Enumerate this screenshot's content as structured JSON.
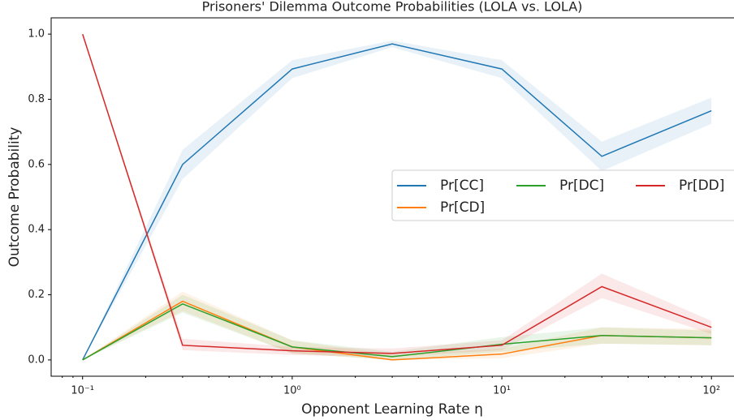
{
  "chart_data": {
    "type": "line",
    "title": "Prisoners' Dilemma Outcome Probabilities (LOLA vs. LOLA)",
    "xlabel": "Opponent Learning Rate η",
    "ylabel": "Outcome Probability",
    "xscale": "log",
    "x": [
      0.1,
      0.3,
      1,
      3,
      10,
      30,
      100
    ],
    "series": [
      {
        "name": "Pr[CC]",
        "color": "#1f77b4",
        "values": [
          0,
          0.6,
          0.893,
          0.97,
          0.893,
          0.625,
          0.765
        ],
        "lower": [
          0,
          0.555,
          0.865,
          0.96,
          0.865,
          0.58,
          0.725
        ],
        "upper": [
          0,
          0.645,
          0.92,
          0.98,
          0.92,
          0.67,
          0.805
        ]
      },
      {
        "name": "Pr[CD]",
        "color": "#ff7f0e",
        "values": [
          0,
          0.18,
          0.04,
          0.0,
          0.018,
          0.075,
          0.068
        ],
        "lower": [
          0,
          0.15,
          0.02,
          0,
          0.005,
          0.05,
          0.045
        ],
        "upper": [
          0,
          0.21,
          0.06,
          0.015,
          0.035,
          0.1,
          0.095
        ]
      },
      {
        "name": "Pr[DC]",
        "color": "#2ca02c",
        "values": [
          0,
          0.172,
          0.04,
          0.01,
          0.048,
          0.075,
          0.068
        ],
        "lower": [
          0,
          0.145,
          0.02,
          0,
          0.025,
          0.05,
          0.045
        ],
        "upper": [
          0,
          0.2,
          0.06,
          0.025,
          0.07,
          0.1,
          0.09
        ]
      },
      {
        "name": "Pr[DD]",
        "color": "#d62728",
        "values": [
          1.0,
          0.045,
          0.028,
          0.02,
          0.045,
          0.225,
          0.1
        ],
        "lower": [
          1,
          0.03,
          0.015,
          0.01,
          0.03,
          0.19,
          0.08
        ],
        "upper": [
          1,
          0.065,
          0.04,
          0.035,
          0.06,
          0.265,
          0.12
        ]
      }
    ],
    "xlim": [
      0.0708,
      141.3
    ],
    "ylim": [
      -0.05,
      1.05
    ],
    "xticks": [
      {
        "value": 0.1,
        "label": "10⁻¹"
      },
      {
        "value": 1,
        "label": "10⁰"
      },
      {
        "value": 10,
        "label": "10¹"
      },
      {
        "value": 100,
        "label": "10²"
      }
    ],
    "xminorticks": [
      0.08,
      0.09,
      0.2,
      0.3,
      0.4,
      0.5,
      0.6,
      0.7,
      0.8,
      0.9,
      2,
      3,
      4,
      5,
      6,
      7,
      8,
      9,
      20,
      30,
      40,
      50,
      60,
      70,
      80,
      90
    ],
    "yticks": [
      {
        "value": 0,
        "label": "0.0"
      },
      0.2,
      0.4,
      0.6,
      0.8,
      {
        "value": 1,
        "label": "1.0"
      }
    ],
    "legend": "right",
    "grid": false
  }
}
